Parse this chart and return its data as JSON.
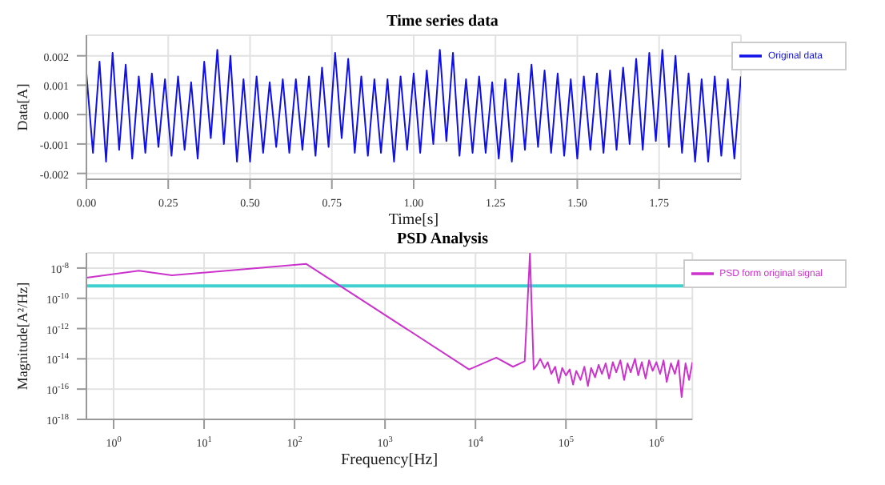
{
  "chart_data": [
    {
      "type": "line",
      "title": "Time series data",
      "xlabel": "Time[s]",
      "ylabel": "Data[A]",
      "xlim": [
        0,
        2
      ],
      "xticks": [
        {
          "value": 0,
          "label": "0.00"
        },
        {
          "value": 0.25,
          "label": "0.25"
        },
        {
          "value": 0.5,
          "label": "0.50"
        },
        {
          "value": 0.75,
          "label": "0.75"
        },
        {
          "value": 1,
          "label": "1.00"
        },
        {
          "value": 1.25,
          "label": "1.25"
        },
        {
          "value": 1.5,
          "label": "1.50"
        },
        {
          "value": 1.75,
          "label": "1.75"
        }
      ],
      "ylim": [
        -0.0022,
        0.0027
      ],
      "yticks": [
        {
          "value": -0.002,
          "label": "-0.002"
        },
        {
          "value": -0.001,
          "label": "-0.001"
        },
        {
          "value": 0,
          "label": "0.000"
        },
        {
          "value": 0.001,
          "label": "0.001"
        },
        {
          "value": 0.002,
          "label": "0.002"
        }
      ],
      "grid": true,
      "legend": "top right",
      "marker": "none",
      "line_style": "solid",
      "x": [
        0,
        0.02,
        0.04,
        0.06,
        0.08,
        0.1,
        0.12,
        0.14,
        0.16,
        0.18,
        0.2,
        0.22,
        0.24,
        0.26,
        0.28,
        0.3,
        0.32,
        0.34,
        0.36,
        0.38,
        0.4,
        0.42,
        0.44,
        0.46,
        0.48,
        0.5,
        0.52,
        0.54,
        0.56,
        0.58,
        0.6,
        0.62,
        0.64,
        0.66,
        0.68,
        0.7,
        0.72,
        0.74,
        0.76,
        0.78,
        0.8,
        0.82,
        0.84,
        0.86,
        0.88,
        0.9,
        0.92,
        0.94,
        0.96,
        0.98,
        1,
        1.02,
        1.04,
        1.06,
        1.08,
        1.1,
        1.12,
        1.14,
        1.16,
        1.18,
        1.2,
        1.22,
        1.24,
        1.26,
        1.28,
        1.3,
        1.32,
        1.34,
        1.36,
        1.38,
        1.4,
        1.42,
        1.44,
        1.46,
        1.48,
        1.5,
        1.52,
        1.54,
        1.56,
        1.58,
        1.6,
        1.62,
        1.64,
        1.66,
        1.68,
        1.7,
        1.72,
        1.74,
        1.76,
        1.78,
        1.8,
        1.82,
        1.84,
        1.86,
        1.88,
        1.9,
        1.92,
        1.94,
        1.96,
        1.98,
        2
      ],
      "series": [
        {
          "name": "Original data",
          "color": "#1010e8",
          "values": [
            0.0014,
            -0.0013,
            0.0018,
            -0.0016,
            0.0021,
            -0.0012,
            0.0017,
            -0.0015,
            0.0013,
            -0.0013,
            0.0014,
            -0.0011,
            0.0012,
            -0.0014,
            0.0013,
            -0.0012,
            0.0011,
            -0.0015,
            0.0018,
            -0.0008,
            0.0022,
            -0.001,
            0.002,
            -0.0016,
            0.0012,
            -0.0016,
            0.0013,
            -0.0013,
            0.0011,
            -0.0011,
            0.0012,
            -0.0013,
            0.0012,
            -0.0012,
            0.0013,
            -0.0014,
            0.0016,
            -0.0011,
            0.0021,
            -0.0008,
            0.0019,
            -0.0013,
            0.0013,
            -0.0014,
            0.0012,
            -0.0013,
            0.0012,
            -0.0016,
            0.0013,
            -0.0012,
            0.0014,
            -0.0013,
            0.0015,
            -0.001,
            0.0022,
            -0.0009,
            0.0021,
            -0.0014,
            0.0012,
            -0.0013,
            0.0013,
            -0.0013,
            0.0011,
            -0.0015,
            0.0012,
            -0.0016,
            0.0014,
            -0.0012,
            0.0017,
            -0.0011,
            0.0015,
            -0.0013,
            0.0014,
            -0.0014,
            0.0012,
            -0.0015,
            0.0013,
            -0.0012,
            0.0014,
            -0.0013,
            0.0015,
            -0.0012,
            0.0016,
            -0.001,
            0.0019,
            -0.0012,
            0.0021,
            -0.0009,
            0.0022,
            -0.0011,
            0.002,
            -0.0013,
            0.0014,
            -0.0016,
            0.0012,
            -0.0016,
            0.0013,
            -0.0014,
            0.0012,
            -0.0015,
            0.0013
          ]
        }
      ]
    },
    {
      "type": "line",
      "title": "PSD Analysis",
      "xlabel": "Frequency[Hz]",
      "ylabel": "Magnitude[A²/Hz]",
      "log": "xy",
      "xlim": [
        0.5,
        2500000
      ],
      "xticks": [
        {
          "value": 1,
          "label": "10$^{0}$"
        },
        {
          "value": 10,
          "label": "10$^{1}$"
        },
        {
          "value": 100,
          "label": "10$^{2}$"
        },
        {
          "value": 1000,
          "label": "10$^{3}$"
        },
        {
          "value": 10000,
          "label": "10$^{4}$"
        },
        {
          "value": 100000,
          "label": "10$^{5}$"
        },
        {
          "value": 1000000,
          "label": "10$^{6}$"
        }
      ],
      "ylim": [
        1e-18,
        1e-07
      ],
      "yticks": [
        {
          "value": 1e-18,
          "label": "10$^{-18}$"
        },
        {
          "value": 1e-16,
          "label": "10$^{-16}$"
        },
        {
          "value": 1e-14,
          "label": "10$^{-14}$"
        },
        {
          "value": 1e-12,
          "label": "10$^{-12}$"
        },
        {
          "value": 1e-10,
          "label": "10$^{-10}$"
        },
        {
          "value": 1e-08,
          "label": "10$^{-8}$"
        }
      ],
      "grid": true,
      "legend": "top right",
      "marker": "none",
      "line_style": "solid",
      "ref_lines": [
        {
          "axis": "y",
          "value": 6.6e-10,
          "color": "#40d0d0"
        }
      ],
      "x": [
        0.5,
        1.9,
        4.4,
        134,
        8500,
        17000,
        26000,
        35000,
        40000,
        44000,
        48000,
        52000,
        58000,
        63000,
        69000,
        76000,
        83000,
        91000,
        100000,
        110000,
        120000,
        130000,
        145000,
        160000,
        175000,
        190000,
        210000,
        230000,
        250000,
        275000,
        300000,
        330000,
        360000,
        400000,
        440000,
        480000,
        520000,
        580000,
        630000,
        690000,
        760000,
        830000,
        910000,
        1000000,
        1100000,
        1200000,
        1300000,
        1450000,
        1600000,
        1750000,
        1900000,
        2100000,
        2300000,
        2500000
      ],
      "series": [
        {
          "name": "PSD form original signal",
          "color": "#cc33cc",
          "values": [
            2.3e-09,
            6.6e-09,
            3.3e-09,
            1.9e-08,
            2e-15,
            1.2e-14,
            3e-15,
            7e-15,
            9e-08,
            2e-15,
            4e-15,
            1e-14,
            2.5e-15,
            6e-15,
            1e-15,
            3e-15,
            2.5e-16,
            2.5e-15,
            8e-16,
            2e-15,
            2e-16,
            1.6e-15,
            4e-16,
            3e-15,
            1.6e-16,
            2.5e-15,
            6e-16,
            4e-15,
            1e-15,
            5e-15,
            5e-16,
            6e-15,
            1.3e-15,
            8e-15,
            4e-16,
            5e-15,
            1.3e-15,
            1e-14,
            8e-16,
            6e-15,
            5e-16,
            8e-15,
            1.6e-15,
            6e-15,
            1e-15,
            8e-15,
            3e-16,
            5e-15,
            1e-15,
            8e-15,
            3e-17,
            5e-15,
            4e-16,
            6e-15
          ]
        }
      ]
    }
  ]
}
